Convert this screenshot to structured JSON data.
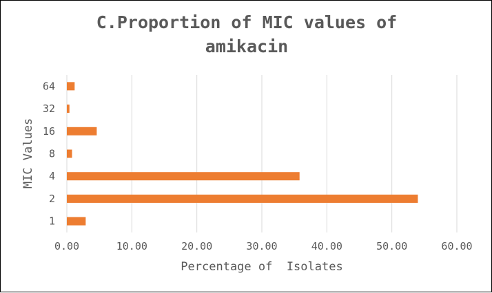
{
  "chart_data": {
    "type": "bar",
    "orientation": "horizontal",
    "title_lines": [
      "C.Proportion of MIC values of",
      "amikacin"
    ],
    "title": "C.Proportion of MIC values of amikacin",
    "xlabel": "Percentage of  Isolates",
    "ylabel": "MIC Values",
    "categories": [
      "1",
      "2",
      "4",
      "8",
      "16",
      "32",
      "64"
    ],
    "values": [
      2.9,
      54.0,
      35.8,
      0.8,
      4.6,
      0.4,
      1.2
    ],
    "xlim": [
      0,
      60
    ],
    "xticks": [
      0,
      10,
      20,
      30,
      40,
      50,
      60
    ],
    "xtick_labels": [
      "0.00",
      "10.00",
      "20.00",
      "30.00",
      "40.00",
      "50.00",
      "60.00"
    ],
    "grid": "vertical",
    "legend": "none",
    "bar_color": "#ED7D31",
    "grid_color": "#D9D9D9",
    "text_color": "#595959"
  }
}
